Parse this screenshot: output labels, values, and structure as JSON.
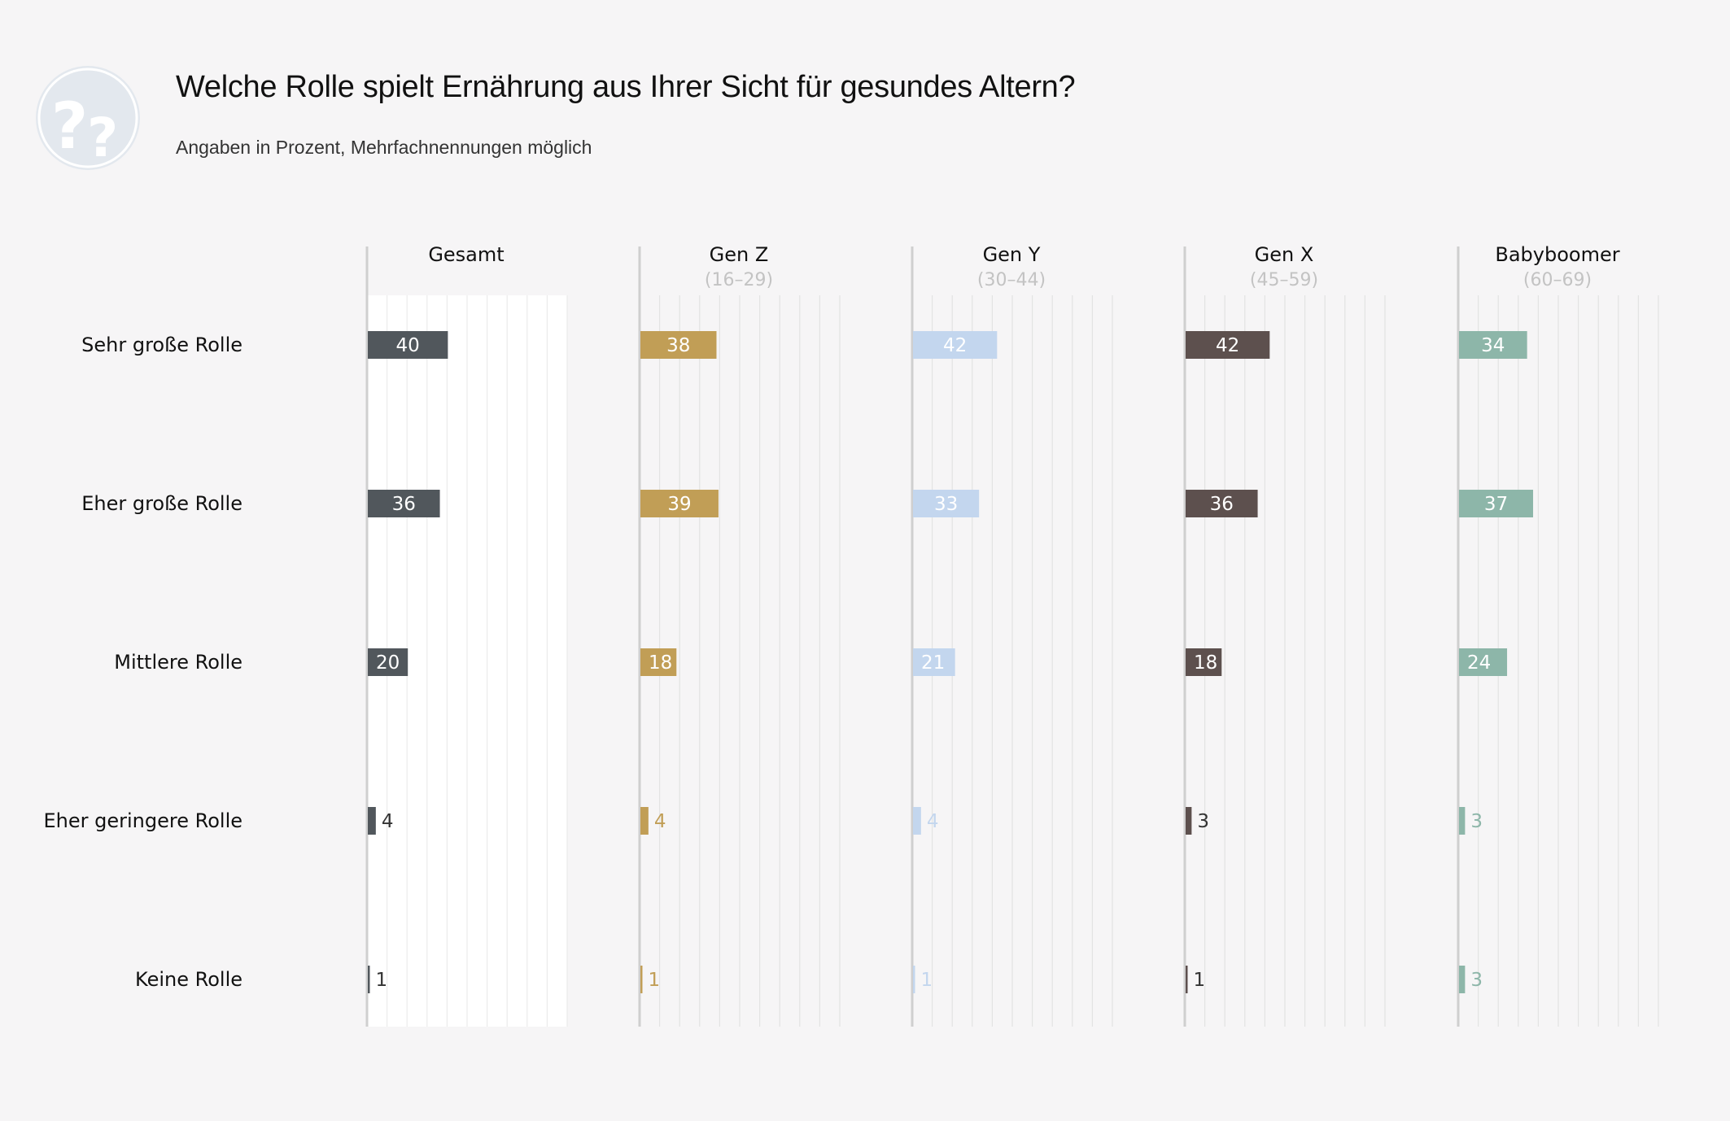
{
  "header": {
    "title": "Welche Rolle spielt Ernährung aus Ihrer Sicht für gesundes Altern?",
    "subtitle": "Angaben in Prozent, Mehrfachnennungen möglich",
    "logo_icon": "question-marks-icon"
  },
  "chart_data": {
    "type": "bar",
    "orientation": "horizontal",
    "categories": [
      "Sehr große Rolle",
      "Eher große Rolle",
      "Mittlere Rolle",
      "Eher geringere Rolle",
      "Keine Rolle"
    ],
    "series": [
      {
        "name": "Gesamt",
        "subtitle": "",
        "color": "#51575c",
        "values": [
          40,
          36,
          20,
          4,
          1
        ]
      },
      {
        "name": "Gen Z",
        "subtitle": "(16–29)",
        "color": "#c19e56",
        "values": [
          38,
          39,
          18,
          4,
          1
        ]
      },
      {
        "name": "Gen Y",
        "subtitle": "(30–44)",
        "color": "#c3d6ee",
        "values": [
          42,
          33,
          21,
          4,
          1
        ]
      },
      {
        "name": "Gen X",
        "subtitle": "(45–59)",
        "color": "#5d504e",
        "values": [
          42,
          36,
          18,
          3,
          1
        ]
      },
      {
        "name": "Babyboomer",
        "subtitle": "(60–69)",
        "color": "#8db6a9",
        "values": [
          34,
          37,
          24,
          3,
          3
        ]
      }
    ],
    "xlim": [
      0,
      100
    ],
    "grid": true,
    "highlighted_panel": "Gesamt"
  }
}
